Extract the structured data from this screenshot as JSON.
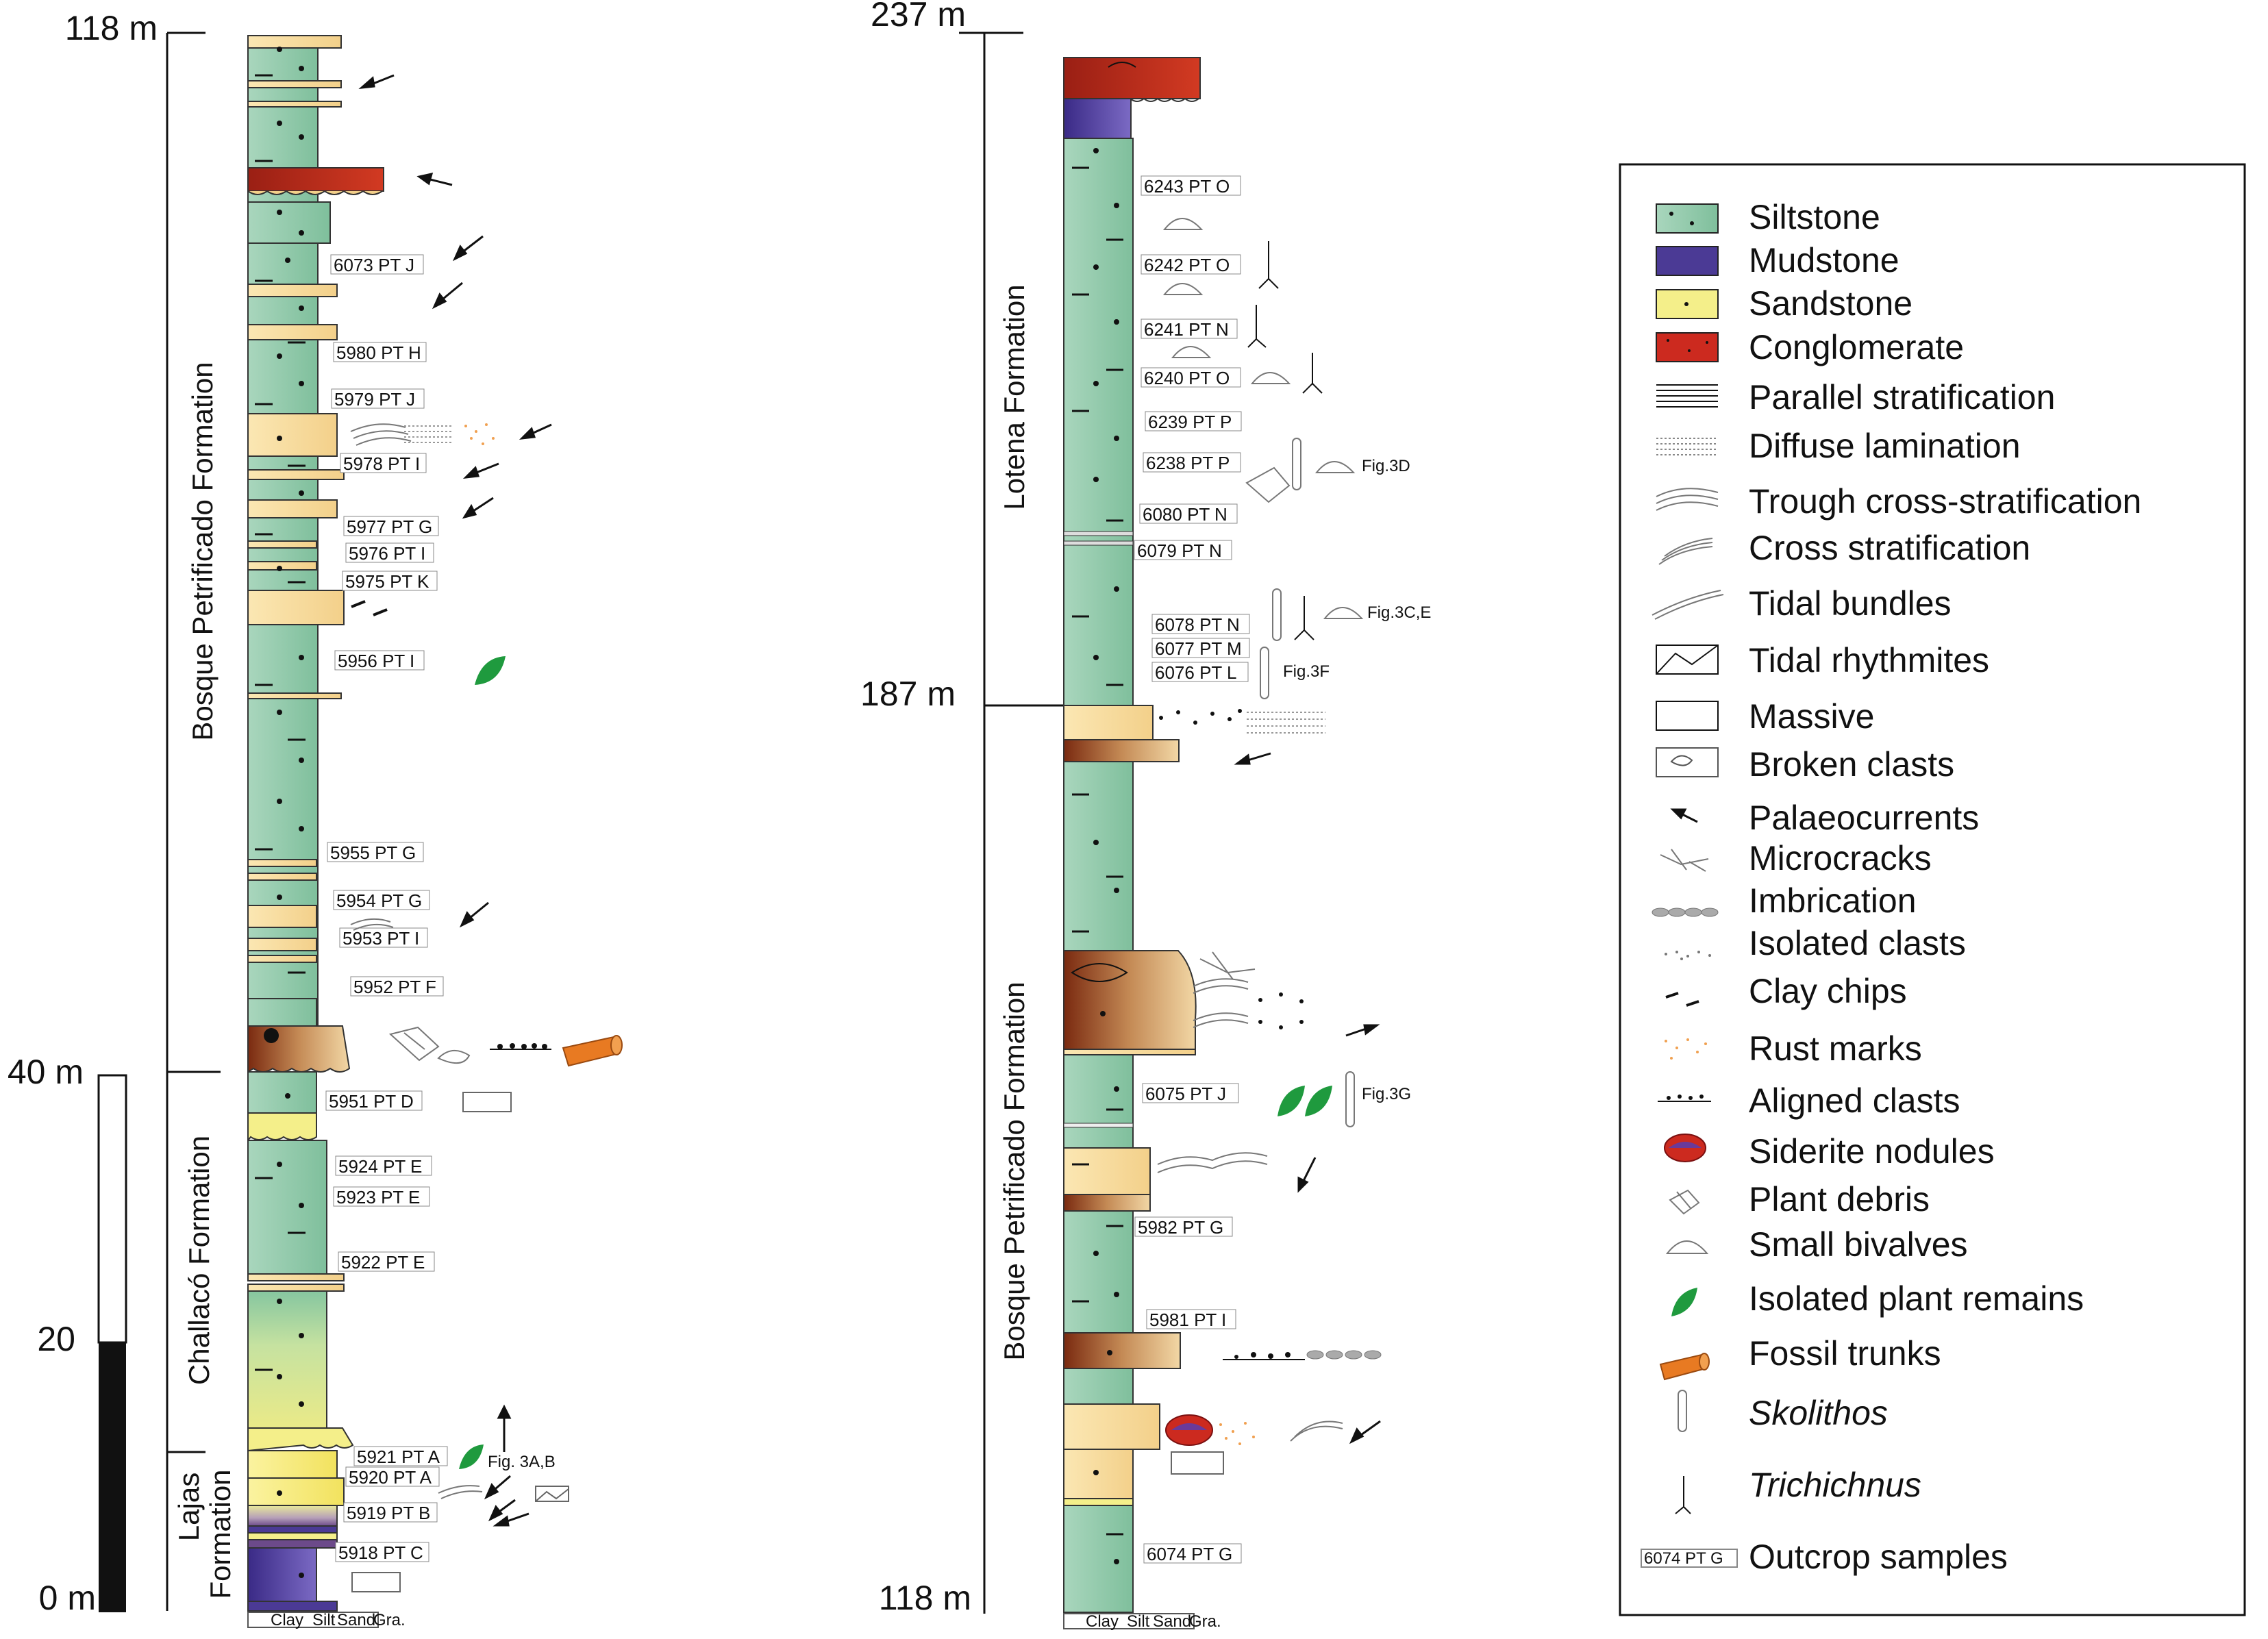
{
  "scale_bar": {
    "ticks": [
      "40 m",
      "20",
      "0 m"
    ],
    "tick_values": [
      40,
      20,
      0
    ]
  },
  "column_left": {
    "top_label": "118 m",
    "formations": [
      {
        "name": "Bosque Petrificado Formation",
        "from_m": 40,
        "to_m": 118
      },
      {
        "name": "Challacó Formation",
        "from_m": 12,
        "to_m": 40
      },
      {
        "name": "Lajas Formation",
        "from_m": 0,
        "to_m": 12
      }
    ],
    "samples": [
      "6073 PT J",
      "5980 PT H",
      "5979 PT J",
      "5978 PT I",
      "5977 PT G",
      "5976 PT I",
      "5975 PT K",
      "5956 PT I",
      "5955 PT G",
      "5954 PT G",
      "5953 PT I",
      "5952 PT F",
      "5951 PT D",
      "5924 PT E",
      "5923 PT E",
      "5922 PT E",
      "5921 PT A",
      "5920 PT A",
      "5919 PT B",
      "5918 PT C"
    ],
    "figure_refs": [
      "Fig. 3A,B"
    ],
    "grain_axis": [
      "Clay",
      "Silt",
      "Sand",
      "Gra."
    ]
  },
  "column_right": {
    "top_label": "237 m",
    "mid_label": "187 m",
    "bottom_label": "118 m",
    "formations": [
      {
        "name": "Lotena Formation",
        "from_m": 187,
        "to_m": 237
      },
      {
        "name": "Bosque Petrificado Formation",
        "from_m": 118,
        "to_m": 187
      }
    ],
    "samples": [
      "6243 PT O",
      "6242 PT O",
      "6241 PT N",
      "6240 PT O",
      "6239 PT P",
      "6238 PT P",
      "6080 PT N",
      "6079 PT N",
      "6078 PT N",
      "6077 PT M",
      "6076 PT L",
      "6075 PT J",
      "5982 PT G",
      "5981 PT I",
      "6074 PT G"
    ],
    "figure_refs": [
      "Fig.3D",
      "Fig.3C,E",
      "Fig.3F",
      "Fig.3G"
    ],
    "grain_axis": [
      "Clay",
      "Silt",
      "Sand",
      "Gra."
    ]
  },
  "legend": {
    "items": [
      {
        "label": "Siltstone",
        "icon": "siltstone-swatch"
      },
      {
        "label": "Mudstone",
        "icon": "mudstone-swatch"
      },
      {
        "label": "Sandstone",
        "icon": "sandstone-swatch"
      },
      {
        "label": "Conglomerate",
        "icon": "conglomerate-swatch"
      },
      {
        "label": "Parallel stratification",
        "icon": "parallel-lines-icon"
      },
      {
        "label": "Diffuse lamination",
        "icon": "dotted-lines-icon"
      },
      {
        "label": "Trough cross-stratification",
        "icon": "trough-icon"
      },
      {
        "label": "Cross stratification",
        "icon": "cross-strat-icon"
      },
      {
        "label": "Tidal bundles",
        "icon": "tidal-bundles-icon"
      },
      {
        "label": "Tidal rhythmites",
        "icon": "tidal-rhythmites-icon"
      },
      {
        "label": "Massive",
        "icon": "massive-icon"
      },
      {
        "label": "Broken clasts",
        "icon": "broken-clasts-icon"
      },
      {
        "label": "Palaeocurrents",
        "icon": "arrow-icon"
      },
      {
        "label": "Microcracks",
        "icon": "microcracks-icon"
      },
      {
        "label": "Imbrication",
        "icon": "imbrication-icon"
      },
      {
        "label": "Isolated clasts",
        "icon": "isolated-clasts-icon"
      },
      {
        "label": "Clay chips",
        "icon": "clay-chips-icon"
      },
      {
        "label": "Rust marks",
        "icon": "rust-marks-icon"
      },
      {
        "label": "Aligned clasts",
        "icon": "aligned-clasts-icon"
      },
      {
        "label": "Siderite nodules",
        "icon": "siderite-icon"
      },
      {
        "label": "Plant debris",
        "icon": "plant-debris-icon"
      },
      {
        "label": "Small bivalves",
        "icon": "bivalve-icon"
      },
      {
        "label": "Isolated plant remains",
        "icon": "leaf-icon"
      },
      {
        "label": "Fossil trunks",
        "icon": "trunk-icon"
      },
      {
        "label": "Skolithos",
        "icon": "skolithos-icon"
      },
      {
        "label": "Trichichnus",
        "icon": "trichichnus-icon"
      },
      {
        "label": "Outcrop samples",
        "icon": "sample-box-icon",
        "sample_example": "6074 PT G"
      }
    ]
  },
  "colors": {
    "siltstone": "#8ecaa8",
    "mudstone": "#4b3a95",
    "sandstone": "#f4ef8a",
    "conglomerate": "#cc2a1f",
    "sand_pale": "#f8dca0",
    "trunk": "#e87a22",
    "leaf": "#1f9a3e"
  }
}
